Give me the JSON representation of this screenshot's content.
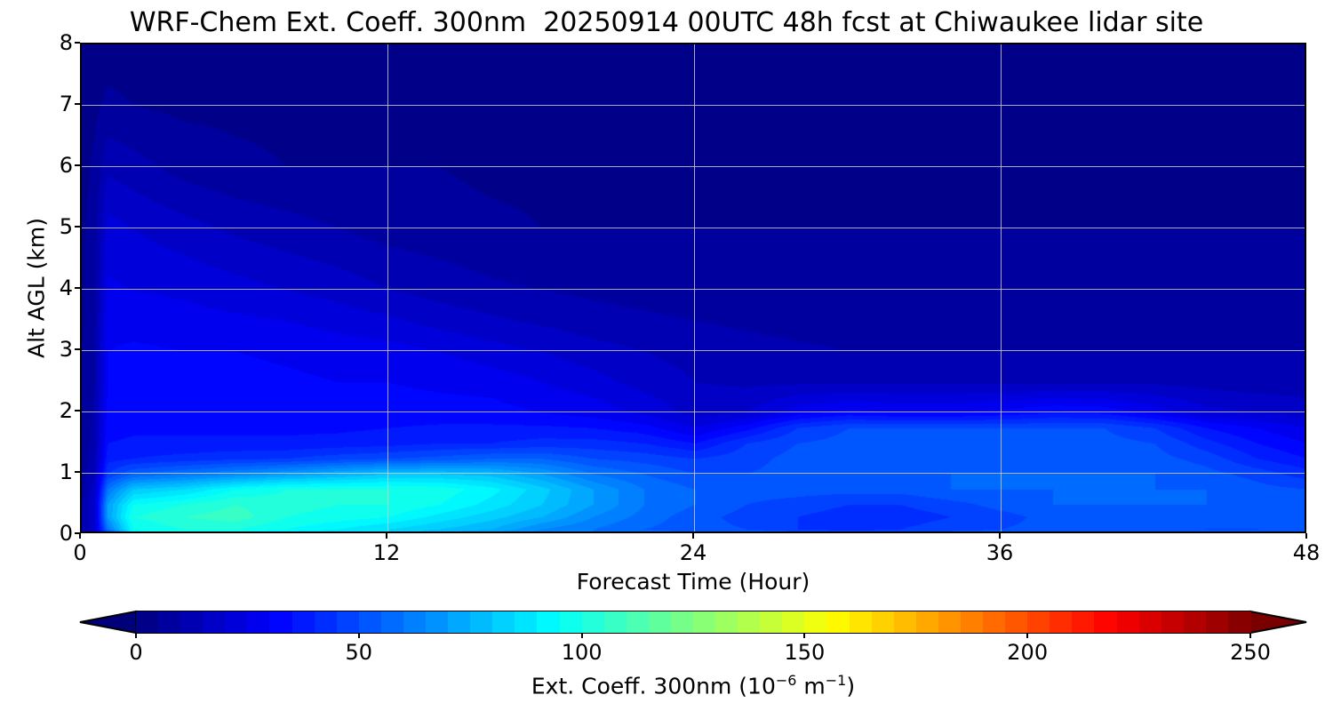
{
  "chart_data": {
    "type": "heatmap",
    "title": "WRF-Chem Ext. Coeff. 300nm  20250914 00UTC 48h fcst at Chiwaukee lidar site",
    "xlabel": "Forecast Time (Hour)",
    "ylabel": "Alt AGL (km)",
    "xlim": [
      0,
      48
    ],
    "ylim": [
      0,
      8
    ],
    "xticks": [
      "0",
      "12",
      "24",
      "36",
      "48"
    ],
    "yticks": [
      "0",
      "1",
      "2",
      "3",
      "4",
      "5",
      "6",
      "7",
      "8"
    ],
    "grid": true,
    "colormap": "jet",
    "clim": [
      0,
      250
    ],
    "colorbar": {
      "label_main": "Ext. Coeff. 300nm  (10",
      "label_exp1": "−6",
      "label_mid": " m",
      "label_exp2": "−1",
      "label_end": ")",
      "ticks": [
        "0",
        "50",
        "100",
        "150",
        "200",
        "250"
      ],
      "extend": "both",
      "placement": "bottom"
    },
    "x": [
      0,
      0.5,
      1,
      2,
      4,
      6,
      8,
      10,
      12,
      14,
      16,
      18,
      20,
      22,
      24,
      26,
      28,
      30,
      32,
      34,
      36,
      38,
      40,
      42,
      44,
      46,
      48
    ],
    "y": [
      0,
      0.1,
      0.3,
      0.5,
      0.75,
      1.0,
      1.25,
      1.5,
      1.75,
      2.0,
      2.5,
      3.0,
      3.5,
      4.0,
      5.0,
      6.0,
      7.0,
      8.0
    ],
    "z": [
      [
        10,
        15,
        30,
        90,
        95,
        85,
        80,
        80,
        85,
        70,
        65,
        60,
        60,
        58,
        60,
        62,
        60,
        55,
        55,
        55,
        55,
        55,
        55,
        55,
        55,
        55,
        55
      ],
      [
        10,
        20,
        60,
        95,
        100,
        100,
        95,
        90,
        85,
        80,
        75,
        65,
        60,
        55,
        52,
        50,
        45,
        42,
        45,
        48,
        50,
        52,
        52,
        52,
        50,
        50,
        52
      ],
      [
        10,
        20,
        70,
        100,
        105,
        108,
        100,
        98,
        95,
        88,
        82,
        75,
        65,
        58,
        52,
        48,
        45,
        42,
        42,
        45,
        48,
        52,
        52,
        52,
        50,
        50,
        52
      ],
      [
        10,
        20,
        70,
        95,
        100,
        105,
        102,
        100,
        100,
        95,
        88,
        80,
        70,
        60,
        55,
        50,
        48,
        45,
        45,
        48,
        52,
        55,
        55,
        55,
        55,
        55,
        55
      ],
      [
        8,
        18,
        60,
        80,
        85,
        95,
        100,
        100,
        100,
        98,
        92,
        82,
        70,
        60,
        55,
        52,
        52,
        52,
        52,
        55,
        55,
        55,
        55,
        55,
        55,
        52,
        50
      ],
      [
        8,
        15,
        45,
        55,
        60,
        65,
        70,
        75,
        80,
        80,
        78,
        70,
        60,
        55,
        50,
        50,
        52,
        52,
        52,
        55,
        55,
        55,
        55,
        55,
        52,
        48,
        42
      ],
      [
        6,
        14,
        38,
        40,
        42,
        44,
        45,
        48,
        50,
        52,
        55,
        55,
        50,
        48,
        45,
        48,
        52,
        52,
        52,
        52,
        52,
        52,
        52,
        52,
        48,
        40,
        35
      ],
      [
        6,
        12,
        35,
        36,
        36,
        36,
        36,
        37,
        38,
        40,
        40,
        42,
        42,
        40,
        35,
        45,
        50,
        52,
        52,
        52,
        52,
        52,
        52,
        50,
        42,
        35,
        30
      ],
      [
        5,
        12,
        33,
        34,
        34,
        34,
        34,
        34,
        35,
        36,
        36,
        36,
        35,
        32,
        25,
        33,
        45,
        50,
        50,
        50,
        50,
        50,
        50,
        45,
        35,
        30,
        25
      ],
      [
        5,
        11,
        32,
        33,
        33,
        33,
        32,
        32,
        32,
        32,
        32,
        30,
        28,
        24,
        18,
        20,
        28,
        32,
        30,
        30,
        32,
        35,
        34,
        28,
        22,
        20,
        18
      ],
      [
        5,
        10,
        30,
        32,
        32,
        32,
        31,
        30,
        30,
        29,
        28,
        25,
        22,
        18,
        15,
        14,
        14,
        14,
        14,
        14,
        14,
        14,
        14,
        14,
        13,
        12,
        12
      ],
      [
        5,
        10,
        30,
        31,
        30,
        30,
        29,
        28,
        27,
        25,
        22,
        20,
        17,
        15,
        13,
        12,
        11,
        10,
        10,
        10,
        10,
        10,
        10,
        10,
        10,
        10,
        10
      ],
      [
        4,
        9,
        28,
        28,
        27,
        26,
        25,
        23,
        21,
        18,
        16,
        14,
        12,
        11,
        10,
        9,
        8,
        8,
        8,
        8,
        8,
        8,
        8,
        8,
        8,
        8,
        8
      ],
      [
        4,
        9,
        26,
        25,
        24,
        22,
        20,
        18,
        15,
        13,
        11,
        10,
        9,
        8,
        7,
        6,
        6,
        6,
        6,
        6,
        6,
        6,
        6,
        6,
        6,
        6,
        6
      ],
      [
        4,
        8,
        22,
        20,
        17,
        14,
        12,
        10,
        8,
        7,
        6,
        5,
        5,
        5,
        5,
        5,
        5,
        5,
        5,
        5,
        5,
        5,
        5,
        5,
        5,
        5,
        5
      ],
      [
        3,
        6,
        14,
        12,
        8,
        6,
        5,
        5,
        5,
        5,
        4,
        4,
        4,
        4,
        4,
        4,
        4,
        4,
        4,
        4,
        4,
        4,
        4,
        4,
        4,
        4,
        4
      ],
      [
        3,
        4,
        6,
        5,
        4,
        4,
        4,
        4,
        4,
        4,
        4,
        4,
        4,
        4,
        4,
        4,
        4,
        4,
        4,
        4,
        4,
        4,
        4,
        4,
        4,
        4,
        4
      ],
      [
        3,
        3,
        3,
        3,
        3,
        3,
        3,
        3,
        3,
        3,
        3,
        3,
        3,
        3,
        3,
        3,
        3,
        3,
        3,
        3,
        3,
        3,
        3,
        3,
        3,
        3,
        3
      ]
    ]
  }
}
